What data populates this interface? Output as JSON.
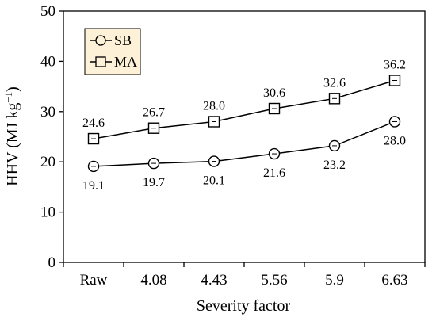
{
  "chart_data": {
    "type": "line",
    "categories": [
      "Raw",
      "4.08",
      "4.43",
      "5.56",
      "5.9",
      "6.63"
    ],
    "xlabel": "Severity factor",
    "ylabel": {
      "main": "HHV (MJ kg",
      "sup": "−1",
      "close": ")"
    },
    "ylim": [
      0,
      50
    ],
    "yticks": [
      "0",
      "10",
      "20",
      "30",
      "40",
      "50"
    ],
    "legend": {
      "position": "top-left",
      "background": "#fdf1d7"
    },
    "series": [
      {
        "name": "SB",
        "marker": "circle",
        "values": [
          19.1,
          19.7,
          20.1,
          21.6,
          23.2,
          28.0
        ],
        "labels": [
          "19.1",
          "19.7",
          "20.1",
          "21.6",
          "23.2",
          "28.0"
        ],
        "label_side": "below"
      },
      {
        "name": "MA",
        "marker": "square",
        "values": [
          24.6,
          26.7,
          28.0,
          30.6,
          32.6,
          36.2
        ],
        "labels": [
          "24.6",
          "26.7",
          "28.0",
          "30.6",
          "32.6",
          "36.2"
        ],
        "label_side": "above"
      }
    ]
  }
}
